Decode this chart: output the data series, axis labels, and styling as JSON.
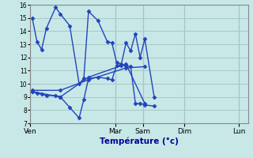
{
  "xlabel": "Température (°c)",
  "background_color": "#c8e8e8",
  "line_color": "#2244bb",
  "grid_color": "#a8c8c8",
  "ylim": [
    7,
    16
  ],
  "yticks": [
    7,
    8,
    9,
    10,
    11,
    12,
    13,
    14,
    15,
    16
  ],
  "day_labels": [
    "Ven",
    "",
    "Mar",
    "Sam",
    "",
    "Dim",
    "",
    "Lun"
  ],
  "xlim": [
    -0.2,
    23
  ],
  "series": [
    {
      "x": [
        0,
        0.5,
        1,
        1.5,
        2.5,
        3,
        4,
        5,
        5.5,
        6,
        7,
        8,
        8.5,
        9,
        9.5,
        10,
        10.5,
        11,
        11.5,
        12,
        13
      ],
      "y": [
        15.0,
        13.2,
        12.6,
        14.2,
        15.8,
        15.3,
        14.4,
        10.0,
        10.4,
        15.5,
        14.8,
        13.2,
        13.1,
        11.6,
        11.5,
        13.1,
        12.5,
        13.8,
        12.0,
        13.4,
        9.0
      ]
    },
    {
      "x": [
        0,
        0.5,
        1,
        1.5,
        2.5,
        3,
        4,
        5,
        5.5,
        6,
        7,
        8,
        8.5,
        9,
        9.5,
        10,
        10.5,
        11,
        11.5,
        12,
        13
      ],
      "y": [
        9.4,
        9.3,
        9.2,
        9.1,
        9.1,
        9.0,
        8.2,
        7.4,
        8.8,
        10.4,
        10.5,
        10.4,
        10.3,
        11.4,
        11.4,
        11.4,
        11.3,
        8.5,
        8.5,
        8.4,
        8.3
      ]
    },
    {
      "x": [
        0,
        3,
        6,
        10,
        12
      ],
      "y": [
        9.5,
        9.5,
        10.3,
        11.2,
        11.3
      ]
    },
    {
      "x": [
        0,
        3,
        6,
        10,
        12
      ],
      "y": [
        9.4,
        9.0,
        10.5,
        11.5,
        8.5
      ]
    }
  ]
}
